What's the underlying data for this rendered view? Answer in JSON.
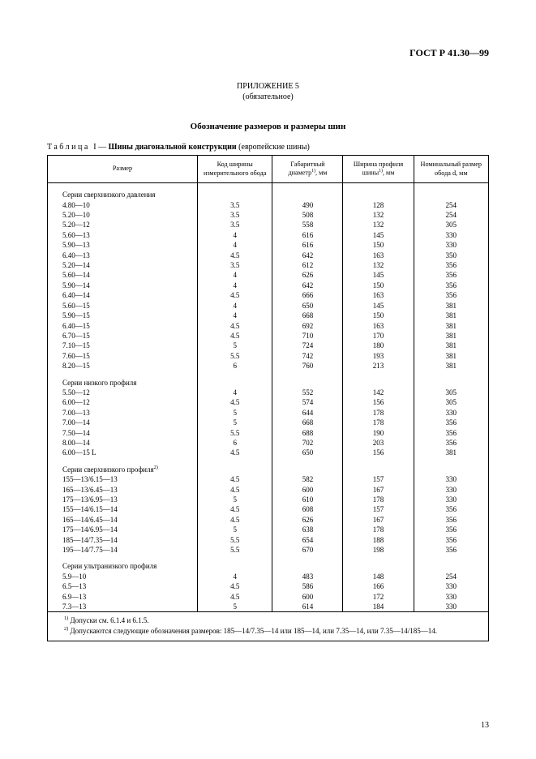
{
  "doc_id": "ГОСТ Р 41.30—99",
  "appendix_label": "ПРИЛОЖЕНИЕ 5",
  "appendix_note": "(обязательное)",
  "section_title": "Обозначение размеров и размеры шин",
  "table_caption_label": "Таблица",
  "table_caption_num": "I",
  "table_caption_dash": "—",
  "table_caption_bold": "Шины диагональной конструкции",
  "table_caption_tail": "(европейские шины)",
  "columns": {
    "c1": "Размер",
    "c2": "Код ширины измерительного обода",
    "c3_a": "Габаритный диаметр",
    "c3_sup": "1)",
    "c3_b": ", мм",
    "c4_a": "Ширина профиля шины",
    "c4_sup": "1)",
    "c4_b": ", мм",
    "c5": "Номинальный размер обода d, мм"
  },
  "notes": {
    "n1_sup": "1)",
    "n1": "Допуски см. 6.1.4 и 6.1.5.",
    "n2_sup": "2)",
    "n2": "Допускаются следующие обозначения размеров: 185—14/7.35—14 или 185—14, или 7.35—14, или 7.35—14/185—14."
  },
  "page_number": "13",
  "groups": [
    {
      "title": "Серии сверхнизкого давления",
      "rows": [
        [
          "4.80—10",
          "3.5",
          "490",
          "128",
          "254"
        ],
        [
          "5.20—10",
          "3.5",
          "508",
          "132",
          "254"
        ],
        [
          "5.20—12",
          "3.5",
          "558",
          "132",
          "305"
        ],
        [
          "5.60—13",
          "4",
          "616",
          "145",
          "330"
        ],
        [
          "5.90—13",
          "4",
          "616",
          "150",
          "330"
        ],
        [
          "6.40—13",
          "4.5",
          "642",
          "163",
          "350"
        ],
        [
          "5.20—14",
          "3.5",
          "612",
          "132",
          "356"
        ],
        [
          "5.60—14",
          "4",
          "626",
          "145",
          "356"
        ],
        [
          "5.90—14",
          "4",
          "642",
          "150",
          "356"
        ],
        [
          "6.40—14",
          "4.5",
          "666",
          "163",
          "356"
        ],
        [
          "5.60—15",
          "4",
          "650",
          "145",
          "381"
        ],
        [
          "5.90—15",
          "4",
          "668",
          "150",
          "381"
        ],
        [
          "6.40—15",
          "4.5",
          "692",
          "163",
          "381"
        ],
        [
          "6.70—15",
          "4.5",
          "710",
          "170",
          "381"
        ],
        [
          "7.10—15",
          "5",
          "724",
          "180",
          "381"
        ],
        [
          "7.60—15",
          "5.5",
          "742",
          "193",
          "381"
        ],
        [
          "8.20—15",
          "6",
          "760",
          "213",
          "381"
        ]
      ]
    },
    {
      "title": "Серии низкого профиля",
      "rows": [
        [
          "5.50—12",
          "4",
          "552",
          "142",
          "305"
        ],
        [
          "6.00—12",
          "4.5",
          "574",
          "156",
          "305"
        ],
        [
          "7.00—13",
          "5",
          "644",
          "178",
          "330"
        ],
        [
          "7.00—14",
          "5",
          "668",
          "178",
          "356"
        ],
        [
          "7.50—14",
          "5.5",
          "688",
          "190",
          "356"
        ],
        [
          "8.00—14",
          "6",
          "702",
          "203",
          "356"
        ],
        [
          "6.00—15 L",
          "4.5",
          "650",
          "156",
          "381"
        ]
      ]
    },
    {
      "title": "Серии сверхнизкого профиля",
      "title_sup": "2)",
      "rows": [
        [
          "155—13/6.15—13",
          "4.5",
          "582",
          "157",
          "330"
        ],
        [
          "165—13/6.45—13",
          "4.5",
          "600",
          "167",
          "330"
        ],
        [
          "175—13/6.95—13",
          "5",
          "610",
          "178",
          "330"
        ],
        [
          "155—14/6.15—14",
          "4.5",
          "608",
          "157",
          "356"
        ],
        [
          "165—14/6.45—14",
          "4.5",
          "626",
          "167",
          "356"
        ],
        [
          "175—14/6.95—14",
          "5",
          "638",
          "178",
          "356"
        ],
        [
          "185—14/7.35—14",
          "5.5",
          "654",
          "188",
          "356"
        ],
        [
          "195—14/7.75—14",
          "5.5",
          "670",
          "198",
          "356"
        ]
      ]
    },
    {
      "title": "Серии ультранизкого профиля",
      "rows": [
        [
          "5.9—10",
          "4",
          "483",
          "148",
          "254"
        ],
        [
          "6.5—13",
          "4.5",
          "586",
          "166",
          "330"
        ],
        [
          "6.9—13",
          "4.5",
          "600",
          "172",
          "330"
        ],
        [
          "7.3—13",
          "5",
          "614",
          "184",
          "330"
        ]
      ]
    }
  ]
}
